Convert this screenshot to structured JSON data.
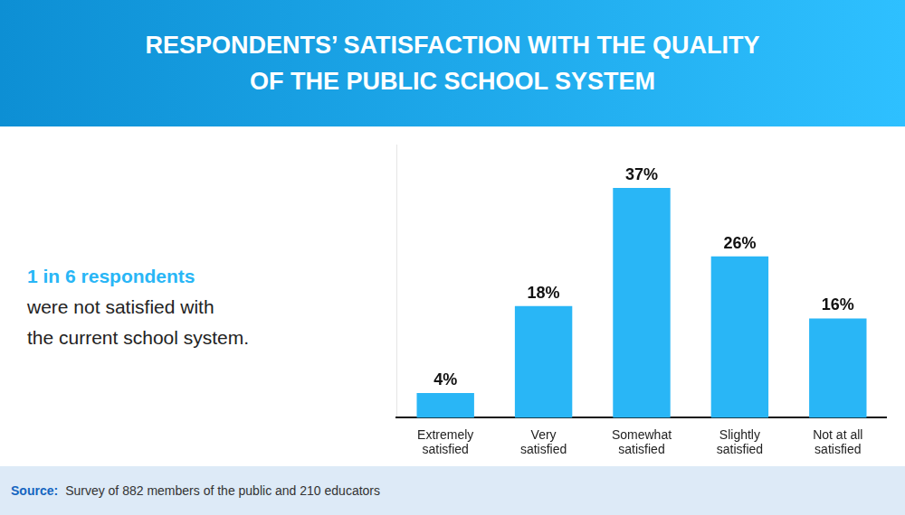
{
  "chart_data": {
    "type": "bar",
    "title": [
      "RESPONDENTS’ SATISFACTION WITH THE QUALITY",
      "OF THE PUBLIC SCHOOL SYSTEM"
    ],
    "categories": [
      "Extremely\nsatisfied",
      "Very\nsatisfied",
      "Somewhat\nsatisfied",
      "Slightly\nsatisfied",
      "Not at all\nsatisfied"
    ],
    "values": [
      4,
      18,
      37,
      26,
      16
    ],
    "value_labels": [
      "4%",
      "18%",
      "37%",
      "26%",
      "16%"
    ],
    "data_labels": true,
    "color": "#29b6f6",
    "ylim": [
      0,
      44
    ],
    "tick_labels": "x",
    "grid": false,
    "legend": false,
    "annotations": [
      "1 in 6 respondents",
      "were not satisfied with",
      "the current school system.",
      "Source:",
      "Survey of 882 members of the public and 210 educators"
    ]
  }
}
